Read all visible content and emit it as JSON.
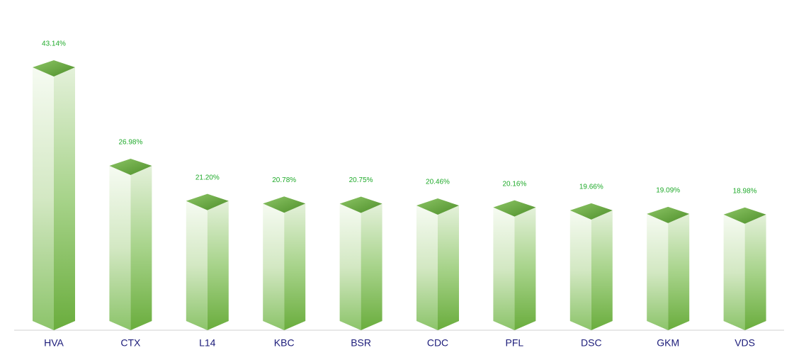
{
  "chart_data": {
    "type": "bar",
    "categories": [
      "HVA",
      "CTX",
      "L14",
      "KBC",
      "BSR",
      "CDC",
      "PFL",
      "DSC",
      "GKM",
      "VDS"
    ],
    "values": [
      43.14,
      26.98,
      21.2,
      20.78,
      20.75,
      20.46,
      20.16,
      19.66,
      19.09,
      18.98
    ],
    "value_labels": [
      "43.14%",
      "26.98%",
      "21.20%",
      "20.78%",
      "20.75%",
      "20.46%",
      "20.16%",
      "19.66%",
      "19.09%",
      "18.98%"
    ],
    "color": "#6aad3d"
  }
}
